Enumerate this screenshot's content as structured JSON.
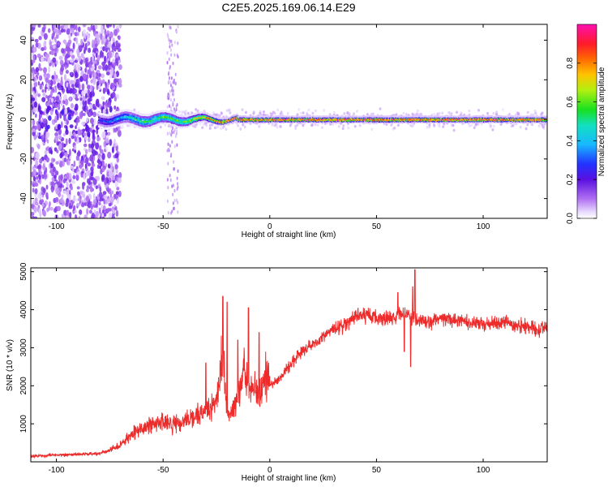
{
  "figure": {
    "title": "C2E5.2025.169.06.14.E29"
  },
  "colors": {
    "snr_line": "#ee2b2b",
    "background": "#ffffff",
    "colormap": [
      "#ffffff",
      "#d9c8ff",
      "#7b28e8",
      "#4b00d8",
      "#1a2cff",
      "#12d7ff",
      "#13e21b",
      "#a8f510",
      "#ffb000",
      "#ff2d2d",
      "#ff00a8"
    ]
  },
  "chart_data": [
    {
      "type": "heatmap",
      "name_ref": "spectrogram",
      "xlabel": "Height of straight line (km)",
      "ylabel": "Frequency (Hz)",
      "xlim": [
        -112,
        130
      ],
      "ylim": [
        -50,
        48
      ],
      "xticks": [
        -100,
        -50,
        0,
        50,
        100
      ],
      "yticks": [
        -40,
        -20,
        0,
        20,
        40
      ],
      "colorbar": {
        "label": "Normalized spectral amplitude",
        "range": [
          0.0,
          1.0
        ],
        "ticks": [
          "0.0",
          "0.2",
          "0.4",
          "0.6",
          "0.8"
        ]
      },
      "features": {
        "broadband_noise_x_range": [
          -112,
          -70
        ],
        "sparse_noise_x_range": [
          -48,
          -43
        ],
        "carrier_frequency": 0,
        "carrier_spread_by_x": [
          [
            -80,
            2.5
          ],
          [
            -60,
            2.5
          ],
          [
            -40,
            2.0
          ],
          [
            -20,
            1.0
          ],
          [
            0,
            1.0
          ],
          [
            50,
            1.0
          ],
          [
            130,
            1.0
          ]
        ],
        "carrier_peak_amplitude_by_x": [
          [
            -80,
            0.25
          ],
          [
            -60,
            0.55
          ],
          [
            -40,
            0.6
          ],
          [
            -20,
            0.95
          ],
          [
            130,
            0.95
          ]
        ]
      },
      "grid": false
    },
    {
      "type": "line",
      "name_ref": "snr",
      "xlabel": "Height of straight line (km)",
      "ylabel": "SNR (10 * v/v)",
      "xlim": [
        -112,
        130
      ],
      "ylim": [
        0,
        5100
      ],
      "xticks": [
        -100,
        -50,
        0,
        50,
        100
      ],
      "yticks": [
        1000,
        2000,
        3000,
        4000,
        5000
      ],
      "series": [
        {
          "x": [
            -112,
            -100,
            -90,
            -80,
            -75,
            -70,
            -65,
            -60,
            -55,
            -50,
            -45,
            -40,
            -35,
            -30,
            -25,
            -22,
            -20,
            -18,
            -15,
            -12,
            -10,
            -7,
            -5,
            -2,
            0,
            5,
            10,
            15,
            20,
            25,
            30,
            35,
            40,
            45,
            50,
            55,
            60,
            65,
            70,
            75,
            80,
            90,
            100,
            110,
            120,
            130
          ],
          "values": [
            150,
            180,
            200,
            220,
            300,
            450,
            700,
            900,
            1000,
            1050,
            1000,
            1100,
            1200,
            1300,
            1500,
            3000,
            1200,
            1300,
            1600,
            2500,
            1900,
            2000,
            1600,
            2300,
            2000,
            2200,
            2600,
            2900,
            3100,
            3300,
            3500,
            3600,
            3800,
            3850,
            3800,
            3750,
            3900,
            3850,
            3700,
            3650,
            3800,
            3700,
            3600,
            3650,
            3550,
            3500
          ],
          "spikes": [
            [
              -22,
              4350
            ],
            [
              -20,
              4200
            ],
            [
              -10,
              4050
            ],
            [
              -5,
              3400
            ],
            [
              68,
              5050
            ],
            [
              67,
              4600
            ],
            [
              60,
              4450
            ],
            [
              63,
              2900
            ],
            [
              66,
              2500
            ],
            [
              -30,
              2600
            ],
            [
              -15,
              3200
            ]
          ]
        }
      ],
      "grid": false
    }
  ]
}
